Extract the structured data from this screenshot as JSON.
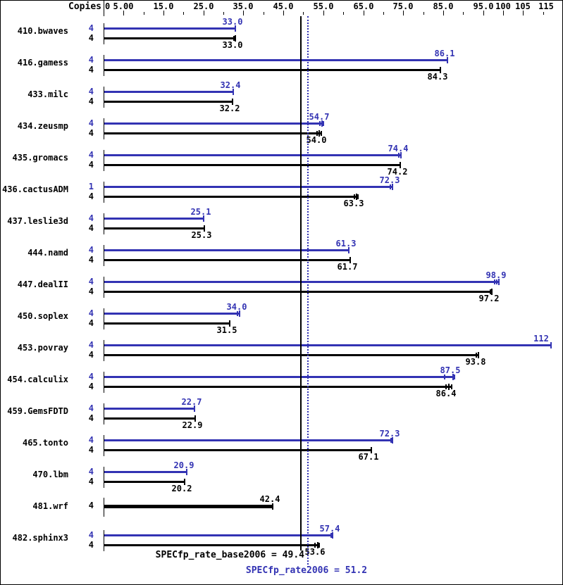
{
  "header": {
    "copies_label": "Copies"
  },
  "colors": {
    "peak": "#3333b3",
    "base": "#000000",
    "background": "#ffffff",
    "frame_border": "#000000"
  },
  "chart_data": {
    "type": "bar",
    "orientation": "horizontal",
    "legend": {
      "peak": "SPECfp_rate2006",
      "base": "SPECfp_rate_base2006"
    },
    "axis": {
      "min": 0,
      "max": 115,
      "zero_label": "0",
      "major_ticks": [
        {
          "v": 5,
          "label": "5.00"
        },
        {
          "v": 15,
          "label": "15.0"
        },
        {
          "v": 25,
          "label": "25.0"
        },
        {
          "v": 35,
          "label": "35.0"
        },
        {
          "v": 45,
          "label": "45.0"
        },
        {
          "v": 55,
          "label": "55.0"
        },
        {
          "v": 65,
          "label": "65.0"
        },
        {
          "v": 75,
          "label": "75.0"
        },
        {
          "v": 85,
          "label": "85.0"
        },
        {
          "v": 95,
          "label": "95.0"
        },
        {
          "v": 100,
          "label": "100"
        },
        {
          "v": 105,
          "label": "105"
        },
        {
          "v": 115,
          "label": "115"
        }
      ],
      "minor_ticks": [
        10,
        20,
        30,
        40,
        50,
        60,
        70,
        80,
        90,
        110
      ]
    },
    "benchmarks": [
      {
        "name": "410.bwaves",
        "bars": [
          {
            "series": "peak",
            "copies": "4",
            "value": 33.0,
            "label": "33.0",
            "marks": []
          },
          {
            "series": "base",
            "copies": "4",
            "value": 33.0,
            "label": "33.0",
            "marks": [
              32.6
            ]
          }
        ]
      },
      {
        "name": "416.gamess",
        "bars": [
          {
            "series": "peak",
            "copies": "4",
            "value": 86.1,
            "label": "86.1",
            "marks": []
          },
          {
            "series": "base",
            "copies": "4",
            "value": 84.3,
            "label": "84.3",
            "marks": []
          }
        ]
      },
      {
        "name": "433.milc",
        "bars": [
          {
            "series": "peak",
            "copies": "4",
            "value": 32.4,
            "label": "32.4",
            "marks": []
          },
          {
            "series": "base",
            "copies": "4",
            "value": 32.2,
            "label": "32.2",
            "marks": []
          }
        ]
      },
      {
        "name": "434.zeusmp",
        "bars": [
          {
            "series": "peak",
            "copies": "4",
            "value": 54.7,
            "label": "54.7",
            "marks": [
              54.1,
              55.1
            ]
          },
          {
            "series": "base",
            "copies": "4",
            "value": 54.0,
            "label": "54.0",
            "marks": [
              53.5,
              54.5
            ]
          }
        ]
      },
      {
        "name": "435.gromacs",
        "bars": [
          {
            "series": "peak",
            "copies": "4",
            "value": 74.4,
            "label": "74.4",
            "marks": [
              73.9
            ]
          },
          {
            "series": "base",
            "copies": "4",
            "value": 74.2,
            "label": "74.2",
            "marks": []
          }
        ]
      },
      {
        "name": "436.cactusADM",
        "bars": [
          {
            "series": "peak",
            "copies": "1",
            "value": 72.3,
            "label": "72.3",
            "marks": [
              71.8
            ]
          },
          {
            "series": "base",
            "copies": "4",
            "value": 63.3,
            "label": "63.3",
            "marks": [
              62.8,
              63.7
            ]
          }
        ]
      },
      {
        "name": "437.leslie3d",
        "bars": [
          {
            "series": "peak",
            "copies": "4",
            "value": 25.1,
            "label": "25.1",
            "marks": []
          },
          {
            "series": "base",
            "copies": "4",
            "value": 25.3,
            "label": "25.3",
            "marks": []
          }
        ]
      },
      {
        "name": "444.namd",
        "bars": [
          {
            "series": "peak",
            "copies": "4",
            "value": 61.3,
            "label": "61.3",
            "marks": []
          },
          {
            "series": "base",
            "copies": "4",
            "value": 61.7,
            "label": "61.7",
            "marks": []
          }
        ]
      },
      {
        "name": "447.dealII",
        "bars": [
          {
            "series": "peak",
            "copies": "4",
            "value": 98.9,
            "label": "98.9",
            "marks": [
              97.9,
              98.4
            ]
          },
          {
            "series": "base",
            "copies": "4",
            "value": 97.2,
            "label": "97.2",
            "marks": [
              96.9
            ]
          }
        ]
      },
      {
        "name": "450.soplex",
        "bars": [
          {
            "series": "peak",
            "copies": "4",
            "value": 34.0,
            "label": "34.0",
            "marks": [
              33.6
            ]
          },
          {
            "series": "base",
            "copies": "4",
            "value": 31.5,
            "label": "31.5",
            "marks": []
          }
        ]
      },
      {
        "name": "453.povray",
        "bars": [
          {
            "series": "peak",
            "copies": "4",
            "value": 112,
            "label": "112",
            "marks": []
          },
          {
            "series": "base",
            "copies": "4",
            "value": 93.8,
            "label": "93.8",
            "marks": [
              93.3
            ]
          }
        ]
      },
      {
        "name": "454.calculix",
        "bars": [
          {
            "series": "peak",
            "copies": "4",
            "value": 87.5,
            "label": "87.5",
            "marks": [
              85.3,
              87.8
            ]
          },
          {
            "series": "base",
            "copies": "4",
            "value": 86.4,
            "label": "86.4",
            "marks": [
              85.7,
              87.1
            ]
          }
        ]
      },
      {
        "name": "459.GemsFDTD",
        "bars": [
          {
            "series": "peak",
            "copies": "4",
            "value": 22.7,
            "label": "22.7",
            "marks": []
          },
          {
            "series": "base",
            "copies": "4",
            "value": 22.9,
            "label": "22.9",
            "marks": []
          }
        ]
      },
      {
        "name": "465.tonto",
        "bars": [
          {
            "series": "peak",
            "copies": "4",
            "value": 72.3,
            "label": "72.3",
            "marks": [
              71.9
            ]
          },
          {
            "series": "base",
            "copies": "4",
            "value": 67.1,
            "label": "67.1",
            "marks": []
          }
        ]
      },
      {
        "name": "470.lbm",
        "bars": [
          {
            "series": "peak",
            "copies": "4",
            "value": 20.9,
            "label": "20.9",
            "marks": []
          },
          {
            "series": "base",
            "copies": "4",
            "value": 20.2,
            "label": "20.2",
            "marks": []
          }
        ]
      },
      {
        "name": "481.wrf",
        "bars": [
          {
            "series": "base",
            "copies": "4",
            "value": 42.4,
            "label": "42.4",
            "marks": [],
            "thick": true,
            "label_side": "above"
          }
        ]
      },
      {
        "name": "482.sphinx3",
        "bars": [
          {
            "series": "peak",
            "copies": "4",
            "value": 57.4,
            "label": "57.4",
            "marks": [
              57.0
            ]
          },
          {
            "series": "base",
            "copies": "4",
            "value": 53.6,
            "label": "53.6",
            "marks": [
              52.9,
              53.9
            ]
          }
        ]
      }
    ],
    "reference_lines": [
      {
        "id": "base",
        "value": 49.4,
        "style": "solid"
      },
      {
        "id": "peak",
        "value": 51.2,
        "style": "dotted"
      }
    ],
    "summary": {
      "base": "SPECfp_rate_base2006 = 49.4",
      "peak": "SPECfp_rate2006 = 51.2"
    }
  }
}
